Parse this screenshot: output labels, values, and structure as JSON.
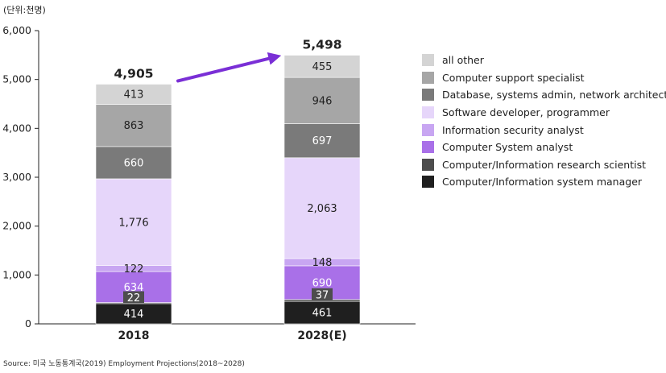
{
  "unit_label": "(단위:천명)",
  "source": "Source: 미국 노동통계국(2019) Employment Projections(2018~2028)",
  "chart_data": {
    "type": "bar",
    "stacked": true,
    "ylim": [
      0,
      6000
    ],
    "yticks": [
      0,
      1000,
      2000,
      3000,
      4000,
      5000,
      6000
    ],
    "ytick_labels": [
      "0",
      "1,000",
      "2,000",
      "3,000",
      "4,000",
      "5,000",
      "6,000"
    ],
    "categories": [
      "2018",
      "2028(E)"
    ],
    "totals": [
      4905,
      5498
    ],
    "total_labels": [
      "4,905",
      "5,498"
    ],
    "legend_position": "right",
    "series": [
      {
        "name": "Computer/Information system manager",
        "color": "#1f1f1f",
        "label_color": "#ffffff",
        "values": [
          414,
          461
        ],
        "labels": [
          "414",
          "461"
        ]
      },
      {
        "name": "Computer/Information research scientist",
        "color": "#4d4d4d",
        "label_color": "#ffffff",
        "values": [
          22,
          37
        ],
        "labels": [
          "22",
          "37"
        ]
      },
      {
        "name": "Computer System analyst",
        "color": "#a970e8",
        "label_color": "#ffffff",
        "values": [
          634,
          690
        ],
        "labels": [
          "634",
          "690"
        ]
      },
      {
        "name": "Information security analyst",
        "color": "#c8a6f2",
        "label_color": "#222222",
        "values": [
          122,
          148
        ],
        "labels": [
          "122",
          "148"
        ]
      },
      {
        "name": "Software developer, programmer",
        "color": "#e6d6fa",
        "label_color": "#222222",
        "values": [
          1776,
          2063
        ],
        "labels": [
          "1,776",
          "2,063"
        ]
      },
      {
        "name": "Database, systems admin, network architect",
        "color": "#7a7a7a",
        "label_color": "#ffffff",
        "values": [
          660,
          697
        ],
        "labels": [
          "660",
          "697"
        ]
      },
      {
        "name": "Computer support specialist",
        "color": "#a6a6a6",
        "label_color": "#222222",
        "values": [
          863,
          946
        ],
        "labels": [
          "863",
          "946"
        ]
      },
      {
        "name": "all other",
        "color": "#d4d4d4",
        "label_color": "#222222",
        "values": [
          413,
          455
        ],
        "labels": [
          "413",
          "455"
        ]
      }
    ],
    "arrow_color": "#7a2fd6"
  }
}
